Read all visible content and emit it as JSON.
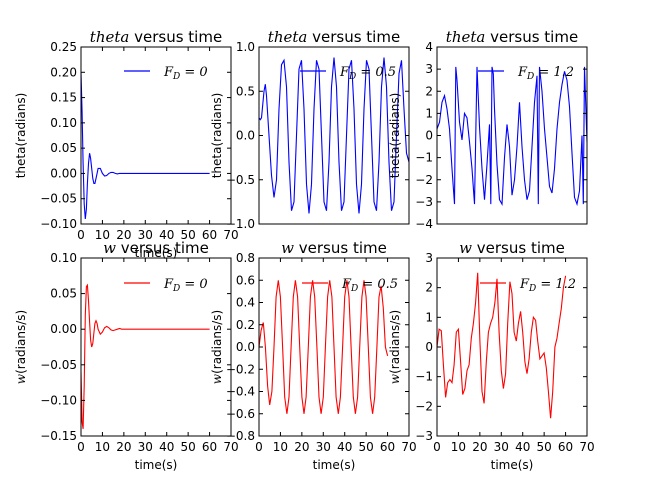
{
  "chart_data": [
    {
      "type": "line",
      "title": {
        "math": "theta",
        "text": " versus time"
      },
      "xlabel": "time(s)",
      "ylabel": {
        "math": "",
        "text": "theta(radians)"
      },
      "xlim": [
        0,
        70
      ],
      "ylim": [
        -0.1,
        0.25
      ],
      "xticks": [
        "0",
        "10",
        "20",
        "30",
        "40",
        "50",
        "60",
        "70"
      ],
      "yticks": [
        "−0.10",
        "−0.05",
        "0.00",
        "0.05",
        "0.10",
        "0.15",
        "0.20",
        "0.25"
      ],
      "color": "#0000ff",
      "legend": "F_D = 0",
      "series": [
        {
          "name": "F_D = 0",
          "x": [
            0,
            0.5,
            1,
            1.5,
            2,
            2.5,
            3,
            3.5,
            4,
            4.5,
            5,
            5.5,
            6,
            6.5,
            7,
            7.5,
            8,
            9,
            10,
            11,
            12,
            13,
            14,
            15,
            16,
            17,
            18,
            19,
            20,
            22,
            24,
            26,
            28,
            30,
            35,
            40,
            45,
            50,
            55,
            60
          ],
          "y": [
            0.2,
            0.12,
            0.02,
            -0.06,
            -0.09,
            -0.07,
            -0.02,
            0.02,
            0.04,
            0.03,
            0.01,
            -0.01,
            -0.02,
            -0.02,
            -0.01,
            0.0,
            0.01,
            0.01,
            0.0,
            -0.005,
            -0.004,
            0.0,
            0.002,
            0.002,
            0.0,
            -0.001,
            0.0,
            0.0,
            0.0,
            0.0,
            0.0,
            0.0,
            0.0,
            0.0,
            0.0,
            0.0,
            0.0,
            0.0,
            0.0,
            0.0
          ]
        }
      ]
    },
    {
      "type": "line",
      "title": {
        "math": "theta",
        "text": " versus time"
      },
      "xlabel": "",
      "ylabel": {
        "math": "",
        "text": "theta(radians)"
      },
      "xlim": [
        0,
        60
      ],
      "ylim": [
        -1.0,
        1.0
      ],
      "xticks": [],
      "yticks": [
        "−1.0",
        "−0.5",
        "0.0",
        "0.5",
        "1.0"
      ],
      "color": "#0000ff",
      "legend": "F_D = 0.5",
      "series": [
        {
          "name": "F_D = 0.5",
          "x": [
            0,
            0.5,
            1,
            2,
            2.5,
            3,
            4,
            5,
            6,
            7,
            8,
            9,
            10,
            11,
            12,
            13,
            14,
            15,
            16,
            17,
            18,
            19,
            20,
            21,
            22,
            23,
            24,
            25,
            26,
            27,
            28,
            29,
            30,
            31,
            32,
            33,
            34,
            35,
            36,
            37,
            38,
            39,
            40,
            41,
            42,
            43,
            44,
            45,
            46,
            47,
            48,
            49,
            50,
            51,
            52,
            53,
            54,
            55,
            56,
            57,
            58,
            59,
            60
          ],
          "y": [
            0.2,
            0.18,
            0.2,
            0.5,
            0.58,
            0.45,
            0.0,
            -0.45,
            -0.7,
            -0.5,
            0.3,
            0.8,
            0.85,
            0.55,
            -0.3,
            -0.85,
            -0.75,
            0.0,
            0.75,
            0.85,
            0.3,
            -0.55,
            -0.88,
            -0.55,
            0.3,
            0.85,
            0.75,
            0.0,
            -0.75,
            -0.85,
            -0.3,
            0.55,
            0.88,
            0.55,
            -0.3,
            -0.85,
            -0.75,
            0.0,
            0.75,
            0.85,
            0.3,
            -0.55,
            -0.88,
            -0.55,
            0.3,
            0.85,
            0.75,
            0.0,
            -0.75,
            -0.85,
            -0.3,
            0.55,
            0.88,
            0.55,
            -0.3,
            -0.85,
            -0.75,
            0.0,
            0.7,
            0.85,
            0.3,
            -0.2,
            -0.3
          ]
        }
      ]
    },
    {
      "type": "line",
      "title": {
        "math": "theta",
        "text": " versus time"
      },
      "xlabel": "",
      "ylabel": {
        "math": "",
        "text": "theta(radians)"
      },
      "xlim": [
        0,
        60
      ],
      "ylim": [
        -4,
        4
      ],
      "xticks": [],
      "yticks": [
        "−4",
        "−3",
        "−2",
        "−1",
        "0",
        "1",
        "2",
        "3",
        "4"
      ],
      "color": "#0000ff",
      "legend": "F_D = 1.2",
      "series": [
        {
          "name": "F_D = 1.2",
          "x": [
            0,
            1,
            2,
            3,
            4,
            5,
            6,
            7,
            7.5,
            8,
            9,
            10,
            11,
            12,
            13,
            14,
            15,
            16,
            17,
            18,
            19,
            20,
            21,
            21.5,
            22,
            22.5,
            23,
            24,
            25,
            26,
            27,
            28,
            29,
            30,
            31,
            32,
            33,
            34,
            35,
            36,
            37,
            38,
            39,
            40,
            40.5,
            41,
            42,
            43,
            44,
            45,
            46,
            47,
            48,
            49,
            50,
            51,
            52,
            53,
            54,
            55,
            56,
            57,
            58,
            58.5,
            59,
            60
          ],
          "y": [
            0.3,
            0.6,
            1.5,
            1.8,
            1.2,
            0.3,
            -1.5,
            -3.1,
            3.1,
            2.5,
            0.6,
            -0.2,
            1.0,
            0.8,
            -0.3,
            -1.5,
            -3.1,
            3.1,
            0.4,
            -1.5,
            -2.9,
            -1.3,
            0.5,
            -3.1,
            3.1,
            2.8,
            1.2,
            -1.3,
            -2.9,
            -3.1,
            -1.0,
            0.5,
            -0.5,
            -2.7,
            -2.0,
            -0.5,
            1.5,
            -0.5,
            -2.0,
            -2.9,
            -2.5,
            -0.5,
            1.5,
            2.7,
            -3.1,
            3.1,
            2.0,
            0.3,
            -1.0,
            -2.3,
            -2.6,
            -1.5,
            0.3,
            1.5,
            2.3,
            2.9,
            2.5,
            1.3,
            -0.8,
            -2.8,
            -3.1,
            -2.5,
            0.0,
            -3.1,
            3.1,
            -0.3
          ]
        }
      ]
    },
    {
      "type": "line",
      "title": {
        "math": "w",
        "text": " versus time"
      },
      "xlabel": "time(s)",
      "ylabel": {
        "math": "w",
        "text": "(radians/s)"
      },
      "xlim": [
        0,
        70
      ],
      "ylim": [
        -0.15,
        0.1
      ],
      "xticks": [
        "0",
        "10",
        "20",
        "30",
        "40",
        "50",
        "60",
        "70"
      ],
      "yticks": [
        "−0.15",
        "−0.10",
        "−0.05",
        "0.00",
        "0.05",
        "0.10"
      ],
      "color": "#ff0000",
      "legend": "F_D = 0",
      "series": [
        {
          "name": "F_D = 0",
          "x": [
            0,
            0.5,
            1,
            1.5,
            2,
            2.5,
            3,
            3.5,
            4,
            4.5,
            5,
            5.5,
            6,
            6.5,
            7,
            7.5,
            8,
            9,
            10,
            11,
            12,
            13,
            14,
            15,
            16,
            17,
            18,
            19,
            20,
            22,
            24,
            26,
            28,
            30,
            35,
            40,
            45,
            50,
            55,
            60
          ],
          "y": [
            -0.06,
            -0.13,
            -0.14,
            -0.08,
            0.02,
            0.06,
            0.062,
            0.04,
            0.01,
            -0.015,
            -0.025,
            -0.02,
            -0.005,
            0.008,
            0.012,
            0.008,
            0.0,
            -0.007,
            -0.004,
            0.002,
            0.004,
            0.002,
            -0.001,
            -0.002,
            -0.001,
            0.0,
            0.001,
            0.0,
            0.0,
            0.0,
            0.0,
            0.0,
            0.0,
            0.0,
            0.0,
            0.0,
            0.0,
            0.0,
            0.0,
            0.0
          ]
        }
      ]
    },
    {
      "type": "line",
      "title": {
        "math": "w",
        "text": " versus time"
      },
      "xlabel": "time(s)",
      "ylabel": {
        "math": "w",
        "text": "(radians/s)"
      },
      "xlim": [
        0,
        70
      ],
      "ylim": [
        -0.8,
        0.8
      ],
      "xticks": [
        "0",
        "10",
        "20",
        "30",
        "40",
        "50",
        "60",
        "70"
      ],
      "yticks": [
        "−0.8",
        "−0.6",
        "−0.4",
        "−0.2",
        "0.0",
        "0.2",
        "0.4",
        "0.6",
        "0.8"
      ],
      "color": "#ff0000",
      "legend": "F_D = 0.5",
      "series": [
        {
          "name": "F_D = 0.5",
          "x": [
            0,
            1,
            2,
            3,
            4,
            5,
            6,
            7,
            8,
            9,
            10,
            11,
            12,
            13,
            14,
            15,
            16,
            17,
            18,
            19,
            20,
            21,
            22,
            23,
            24,
            25,
            26,
            27,
            28,
            29,
            30,
            31,
            32,
            33,
            34,
            35,
            36,
            37,
            38,
            39,
            40,
            41,
            42,
            43,
            44,
            45,
            46,
            47,
            48,
            49,
            50,
            51,
            52,
            53,
            54,
            55,
            56,
            57,
            58,
            59,
            60
          ],
          "y": [
            0.0,
            0.15,
            0.22,
            0.0,
            -0.35,
            -0.52,
            -0.4,
            0.0,
            0.45,
            0.6,
            0.45,
            0.0,
            -0.45,
            -0.6,
            -0.45,
            0.0,
            0.45,
            0.6,
            0.45,
            0.0,
            -0.45,
            -0.6,
            -0.45,
            0.0,
            0.45,
            0.6,
            0.45,
            0.0,
            -0.45,
            -0.6,
            -0.45,
            0.0,
            0.45,
            0.6,
            0.45,
            0.0,
            -0.45,
            -0.6,
            -0.45,
            0.0,
            0.45,
            0.6,
            0.45,
            0.0,
            -0.45,
            -0.6,
            -0.45,
            0.0,
            0.45,
            0.6,
            0.45,
            0.0,
            -0.45,
            -0.6,
            -0.45,
            0.0,
            0.45,
            0.55,
            0.35,
            0.0,
            -0.08
          ]
        }
      ]
    },
    {
      "type": "line",
      "title": {
        "math": "w",
        "text": " versus time"
      },
      "xlabel": "time(s)",
      "ylabel": {
        "math": "w",
        "text": "(radians/s)"
      },
      "xlim": [
        0,
        70
      ],
      "ylim": [
        -3,
        3
      ],
      "xticks": [
        "0",
        "10",
        "20",
        "30",
        "40",
        "50",
        "60",
        "70"
      ],
      "yticks": [
        "−3",
        "−2",
        "−1",
        "0",
        "1",
        "2",
        "3"
      ],
      "color": "#ff0000",
      "legend": "F_D = 1.2",
      "series": [
        {
          "name": "F_D = 1.2",
          "x": [
            0,
            1,
            2,
            3,
            4,
            5,
            6,
            7,
            8,
            9,
            10,
            11,
            12,
            13,
            14,
            15,
            16,
            17,
            18,
            19,
            20,
            21,
            22,
            23,
            24,
            25,
            26,
            27,
            28,
            29,
            30,
            31,
            32,
            33,
            34,
            35,
            36,
            37,
            38,
            39,
            40,
            41,
            42,
            43,
            44,
            45,
            46,
            47,
            48,
            49,
            50,
            51,
            52,
            53,
            54,
            55,
            56,
            57,
            58,
            59,
            60
          ],
          "y": [
            0.0,
            0.6,
            0.55,
            -0.6,
            -1.7,
            -1.2,
            -1.1,
            -1.2,
            -0.6,
            0.5,
            0.6,
            -0.5,
            -1.6,
            -1.4,
            -0.8,
            -0.6,
            0.3,
            0.8,
            1.5,
            2.5,
            0.2,
            -1.5,
            -1.9,
            -0.5,
            0.5,
            0.8,
            1.0,
            1.5,
            2.3,
            0.5,
            -0.8,
            -1.4,
            -0.9,
            0.8,
            2.2,
            1.8,
            0.5,
            0.2,
            0.8,
            1.2,
            0.5,
            -0.5,
            -0.9,
            -0.4,
            0.5,
            1.0,
            0.9,
            0.2,
            -0.4,
            -0.3,
            -0.2,
            -0.7,
            -1.5,
            -2.4,
            -1.5,
            0.0,
            0.3,
            0.8,
            1.3,
            2.0,
            2.4
          ]
        }
      ]
    }
  ]
}
